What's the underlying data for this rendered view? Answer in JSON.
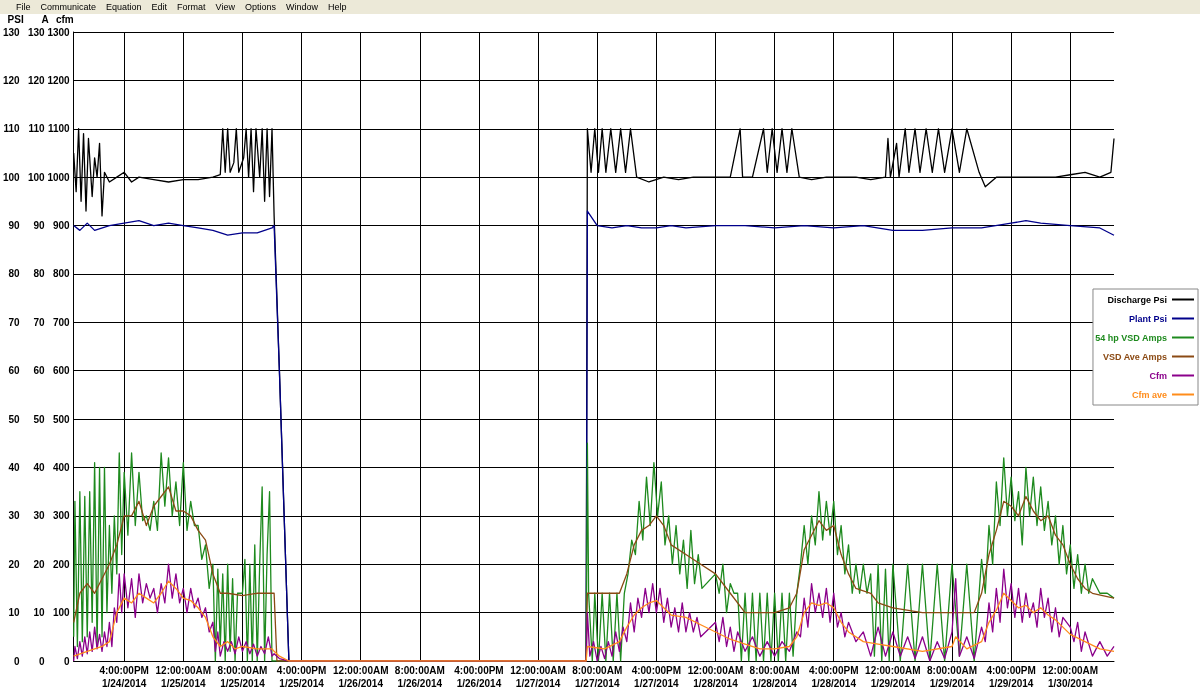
{
  "chart_data": {
    "type": "line",
    "annotations": [
      "File",
      "Communicate",
      "Equation",
      "Edit",
      "Format",
      "View",
      "Options",
      "Window",
      "Help"
    ],
    "ylabel": "PSI",
    "y2label": "A",
    "y3label": "cfm",
    "xlim": [
      "2014-01-24T09:10",
      "2014-01-30T05:55"
    ],
    "xticks": [
      {
        "value": "2014-01-24T16:00",
        "label": "4:00:00PM\n1/24/2014"
      },
      {
        "value": "2014-01-25T00:00",
        "label": "12:00:00AM\n1/25/2014"
      },
      {
        "value": "2014-01-25T08:00",
        "label": "8:00:00AM\n1/25/2014"
      },
      {
        "value": "2014-01-25T16:00",
        "label": "4:00:00PM\n1/25/2014"
      },
      {
        "value": "2014-01-26T00:00",
        "label": "12:00:00AM\n1/26/2014"
      },
      {
        "value": "2014-01-26T08:00",
        "label": "8:00:00AM\n1/26/2014"
      },
      {
        "value": "2014-01-26T16:00",
        "label": "4:00:00PM\n1/26/2014"
      },
      {
        "value": "2014-01-27T00:00",
        "label": "12:00:00AM\n1/27/2014"
      },
      {
        "value": "2014-01-27T08:00",
        "label": "8:00:00AM\n1/27/2014"
      },
      {
        "value": "2014-01-27T16:00",
        "label": "4:00:00PM\n1/27/2014"
      },
      {
        "value": "2014-01-28T00:00",
        "label": "12:00:00AM\n1/28/2014"
      },
      {
        "value": "2014-01-28T08:00",
        "label": "8:00:00AM\n1/28/2014"
      },
      {
        "value": "2014-01-28T16:00",
        "label": "4:00:00PM\n1/28/2014"
      },
      {
        "value": "2014-01-29T00:00",
        "label": "12:00:00AM\n1/29/2014"
      },
      {
        "value": "2014-01-29T08:00",
        "label": "8:00:00AM\n1/29/2014"
      },
      {
        "value": "2014-01-29T16:00",
        "label": "4:00:00PM\n1/29/2014"
      },
      {
        "value": "2014-01-30T00:00",
        "label": "12:00:00AM\n1/30/2014"
      }
    ],
    "ylim": [
      0,
      130
    ],
    "yticks": [
      0,
      10,
      20,
      30,
      40,
      50,
      60,
      70,
      80,
      90,
      100,
      110,
      120,
      130
    ],
    "y2lim": [
      0,
      130
    ],
    "y2ticks": [
      0,
      10,
      20,
      30,
      40,
      50,
      60,
      70,
      80,
      90,
      100,
      110,
      120,
      130
    ],
    "y3lim": [
      0,
      1300
    ],
    "y3ticks": [
      0,
      100,
      200,
      300,
      400,
      500,
      600,
      700,
      800,
      900,
      1000,
      1100,
      1200,
      1300
    ],
    "grid": true,
    "legend": "right",
    "marker": "none",
    "line_style": "solid",
    "series": [
      {
        "name": "Discharge Psi",
        "color": "#000000",
        "x": [
          "2014-01-24T09:10",
          "2014-01-24T09:30",
          "2014-01-24T09:50",
          "2014-01-24T10:10",
          "2014-01-24T10:30",
          "2014-01-24T10:50",
          "2014-01-24T11:10",
          "2014-01-24T11:40",
          "2014-01-24T12:00",
          "2014-01-24T12:20",
          "2014-01-24T12:40",
          "2014-01-24T13:00",
          "2014-01-24T13:20",
          "2014-01-24T14:00",
          "2014-01-24T15:00",
          "2014-01-24T16:00",
          "2014-01-24T17:00",
          "2014-01-24T18:00",
          "2014-01-24T20:00",
          "2014-01-24T22:00",
          "2014-01-25T00:00",
          "2014-01-25T02:00",
          "2014-01-25T04:00",
          "2014-01-25T05:00",
          "2014-01-25T05:20",
          "2014-01-25T05:40",
          "2014-01-25T06:00",
          "2014-01-25T06:20",
          "2014-01-25T06:50",
          "2014-01-25T07:10",
          "2014-01-25T07:30",
          "2014-01-25T08:10",
          "2014-01-25T08:30",
          "2014-01-25T08:50",
          "2014-01-25T09:10",
          "2014-01-25T09:30",
          "2014-01-25T09:50",
          "2014-01-25T10:20",
          "2014-01-25T10:40",
          "2014-01-25T11:00",
          "2014-01-25T11:20",
          "2014-01-25T11:40",
          "2014-01-25T12:00",
          "2014-01-25T12:17",
          "2014-01-25T13:00",
          "2014-01-25T14:17",
          "2014-01-27T06:30",
          "2014-01-27T06:40",
          "2014-01-27T07:10",
          "2014-01-27T07:40",
          "2014-01-27T08:10",
          "2014-01-27T08:40",
          "2014-01-27T09:10",
          "2014-01-27T09:50",
          "2014-01-27T10:30",
          "2014-01-27T11:10",
          "2014-01-27T11:50",
          "2014-01-27T12:30",
          "2014-01-27T13:20",
          "2014-01-27T15:00",
          "2014-01-27T17:00",
          "2014-01-27T19:00",
          "2014-01-27T21:00",
          "2014-01-28T00:00",
          "2014-01-28T02:00",
          "2014-01-28T03:20",
          "2014-01-28T03:40",
          "2014-01-28T05:00",
          "2014-01-28T06:30",
          "2014-01-28T07:00",
          "2014-01-28T07:40",
          "2014-01-28T08:20",
          "2014-01-28T09:00",
          "2014-01-28T09:40",
          "2014-01-28T10:20",
          "2014-01-28T11:20",
          "2014-01-28T13:00",
          "2014-01-28T15:00",
          "2014-01-28T17:00",
          "2014-01-28T19:00",
          "2014-01-28T21:00",
          "2014-01-28T23:00",
          "2014-01-28T23:20",
          "2014-01-28T23:40",
          "2014-01-29T00:30",
          "2014-01-29T00:50",
          "2014-01-29T01:40",
          "2014-01-29T02:10",
          "2014-01-29T03:00",
          "2014-01-29T03:40",
          "2014-01-29T04:30",
          "2014-01-29T05:20",
          "2014-01-29T06:10",
          "2014-01-29T07:00",
          "2014-01-29T08:00",
          "2014-01-29T09:00",
          "2014-01-29T10:00",
          "2014-01-29T11:40",
          "2014-01-29T12:30",
          "2014-01-29T14:00",
          "2014-01-29T16:00",
          "2014-01-29T18:00",
          "2014-01-29T20:00",
          "2014-01-29T22:00",
          "2014-01-30T00:00",
          "2014-01-30T02:00",
          "2014-01-30T04:00",
          "2014-01-30T05:30",
          "2014-01-30T05:55"
        ],
        "values": [
          105,
          97,
          110,
          95,
          109,
          93,
          108,
          96,
          104,
          100,
          107,
          92,
          101,
          99,
          100,
          101,
          99,
          100,
          99.5,
          99,
          99.5,
          99.5,
          100,
          100.5,
          110,
          101,
          110,
          101,
          103,
          110,
          101,
          104,
          110,
          100,
          110,
          97,
          110,
          100,
          110,
          95,
          110,
          96,
          110,
          92,
          60,
          0,
          0,
          110,
          101,
          110,
          101,
          110,
          101,
          110,
          101,
          110,
          101,
          110,
          100,
          99,
          100,
          99.5,
          100,
          100,
          100,
          110,
          100,
          100,
          110,
          101,
          110,
          101,
          110,
          101,
          110,
          100,
          99.5,
          100,
          100,
          100,
          99.5,
          100,
          108,
          100,
          107,
          100,
          110,
          101,
          110,
          101,
          110,
          101,
          110,
          101,
          110,
          101,
          110,
          101,
          98,
          100,
          100,
          100,
          100,
          100,
          100.5,
          101,
          100,
          101,
          108
        ]
      },
      {
        "name": "Plant Psi",
        "color": "#00008b",
        "x": [
          "2014-01-24T09:10",
          "2014-01-24T10:00",
          "2014-01-24T11:00",
          "2014-01-24T12:00",
          "2014-01-24T14:00",
          "2014-01-24T16:00",
          "2014-01-24T18:00",
          "2014-01-24T20:00",
          "2014-01-24T22:00",
          "2014-01-25T00:00",
          "2014-01-25T02:00",
          "2014-01-25T04:00",
          "2014-01-25T06:00",
          "2014-01-25T08:00",
          "2014-01-25T10:00",
          "2014-01-25T12:00",
          "2014-01-25T12:17",
          "2014-01-25T13:00",
          "2014-01-25T14:17",
          "2014-01-27T06:30",
          "2014-01-27T06:40",
          "2014-01-27T08:00",
          "2014-01-27T10:00",
          "2014-01-27T12:00",
          "2014-01-27T14:00",
          "2014-01-27T16:00",
          "2014-01-27T18:00",
          "2014-01-27T20:00",
          "2014-01-28T00:00",
          "2014-01-28T04:00",
          "2014-01-28T08:00",
          "2014-01-28T12:00",
          "2014-01-28T16:00",
          "2014-01-28T20:00",
          "2014-01-29T00:00",
          "2014-01-29T04:00",
          "2014-01-29T08:00",
          "2014-01-29T12:00",
          "2014-01-29T16:00",
          "2014-01-29T18:00",
          "2014-01-29T20:00",
          "2014-01-30T00:00",
          "2014-01-30T04:00",
          "2014-01-30T05:55"
        ],
        "values": [
          90,
          89,
          90.5,
          89,
          90,
          90.5,
          91,
          90,
          90.5,
          90,
          89.5,
          89,
          88,
          88.5,
          88.5,
          89.5,
          90,
          60,
          0,
          0,
          93,
          90,
          89.5,
          90,
          89.5,
          89.5,
          90,
          89.5,
          90,
          90,
          89.5,
          90,
          89.5,
          90,
          89,
          89,
          89.5,
          89.5,
          90.5,
          91,
          90.5,
          90,
          89.5,
          88
        ]
      },
      {
        "name": "54 hp VSD Amps",
        "color": "#1e8a1e",
        "axis": "y2",
        "x": [
          "2014-01-24T09:10",
          "2014-01-24T09:20",
          "2014-01-24T09:40",
          "2014-01-24T10:00",
          "2014-01-24T10:20",
          "2014-01-24T10:40",
          "2014-01-24T11:00",
          "2014-01-24T11:20",
          "2014-01-24T11:40",
          "2014-01-24T12:00",
          "2014-01-24T12:20",
          "2014-01-24T12:40",
          "2014-01-24T13:00",
          "2014-01-24T13:20",
          "2014-01-24T13:40",
          "2014-01-24T14:00",
          "2014-01-24T14:20",
          "2014-01-24T14:40",
          "2014-01-24T15:00",
          "2014-01-24T15:20",
          "2014-01-24T15:40",
          "2014-01-24T16:00",
          "2014-01-24T16:30",
          "2014-01-24T17:00",
          "2014-01-24T17:30",
          "2014-01-24T18:00",
          "2014-01-24T18:30",
          "2014-01-24T19:00",
          "2014-01-24T19:30",
          "2014-01-24T20:00",
          "2014-01-24T20:30",
          "2014-01-24T21:00",
          "2014-01-24T21:30",
          "2014-01-24T22:00",
          "2014-01-24T22:30",
          "2014-01-24T23:00",
          "2014-01-24T23:30",
          "2014-01-25T00:00",
          "2014-01-25T00:30",
          "2014-01-25T01:00",
          "2014-01-25T01:30",
          "2014-01-25T02:00",
          "2014-01-25T02:30",
          "2014-01-25T03:00",
          "2014-01-25T03:30",
          "2014-01-25T04:00",
          "2014-01-25T04:20",
          "2014-01-25T04:40",
          "2014-01-25T05:00",
          "2014-01-25T05:20",
          "2014-01-25T05:40",
          "2014-01-25T06:00",
          "2014-01-25T06:20",
          "2014-01-25T06:40",
          "2014-01-25T07:00",
          "2014-01-25T07:20",
          "2014-01-25T07:40",
          "2014-01-25T08:00",
          "2014-01-25T08:20",
          "2014-01-25T08:40",
          "2014-01-25T09:00",
          "2014-01-25T09:20",
          "2014-01-25T09:40",
          "2014-01-25T10:00",
          "2014-01-25T10:20",
          "2014-01-25T10:40",
          "2014-01-25T11:00",
          "2014-01-25T11:20",
          "2014-01-25T11:40",
          "2014-01-25T12:00",
          "2014-01-25T12:17",
          "2014-01-27T06:30",
          "2014-01-27T06:40",
          "2014-01-27T06:50",
          "2014-01-27T07:20",
          "2014-01-27T07:40",
          "2014-01-27T08:10",
          "2014-01-27T08:40",
          "2014-01-27T09:10",
          "2014-01-27T09:40",
          "2014-01-27T10:10",
          "2014-01-27T10:40",
          "2014-01-27T11:10",
          "2014-01-27T11:40",
          "2014-01-27T12:10",
          "2014-01-27T12:40",
          "2014-01-27T13:10",
          "2014-01-27T13:40",
          "2014-01-27T14:10",
          "2014-01-27T14:40",
          "2014-01-27T15:10",
          "2014-01-27T15:40",
          "2014-01-27T16:10",
          "2014-01-27T16:40",
          "2014-01-27T17:10",
          "2014-01-27T17:40",
          "2014-01-27T18:10",
          "2014-01-27T18:40",
          "2014-01-27T19:10",
          "2014-01-27T19:40",
          "2014-01-27T20:10",
          "2014-01-27T20:40",
          "2014-01-27T21:10",
          "2014-01-27T21:40",
          "2014-01-27T22:10",
          "2014-01-28T00:00",
          "2014-01-28T00:30",
          "2014-01-28T01:00",
          "2014-01-28T01:30",
          "2014-01-28T02:00",
          "2014-01-28T02:30",
          "2014-01-28T03:00",
          "2014-01-28T03:30",
          "2014-01-28T04:00",
          "2014-01-28T04:30",
          "2014-01-28T05:00",
          "2014-01-28T05:30",
          "2014-01-28T06:00",
          "2014-01-28T06:30",
          "2014-01-28T07:00",
          "2014-01-28T07:30",
          "2014-01-28T08:00",
          "2014-01-28T08:30",
          "2014-01-28T09:00",
          "2014-01-28T09:30",
          "2014-01-28T10:00",
          "2014-01-28T10:30",
          "2014-01-28T11:00",
          "2014-01-28T11:30",
          "2014-01-28T12:00",
          "2014-01-28T12:30",
          "2014-01-28T13:00",
          "2014-01-28T13:30",
          "2014-01-28T14:00",
          "2014-01-28T14:30",
          "2014-01-28T15:00",
          "2014-01-28T15:30",
          "2014-01-28T16:00",
          "2014-01-28T16:30",
          "2014-01-28T17:00",
          "2014-01-28T17:30",
          "2014-01-28T18:00",
          "2014-01-28T18:30",
          "2014-01-28T19:00",
          "2014-01-28T19:30",
          "2014-01-28T20:00",
          "2014-01-28T20:30",
          "2014-01-28T21:00",
          "2014-01-28T21:30",
          "2014-01-28T22:00",
          "2014-01-28T22:30",
          "2014-01-28T23:00",
          "2014-01-28T23:30",
          "2014-01-29T00:00",
          "2014-01-29T01:00",
          "2014-01-29T02:00",
          "2014-01-29T03:00",
          "2014-01-29T04:00",
          "2014-01-29T05:00",
          "2014-01-29T06:00",
          "2014-01-29T07:00",
          "2014-01-29T08:00",
          "2014-01-29T09:00",
          "2014-01-29T10:00",
          "2014-01-29T11:00",
          "2014-01-29T12:00",
          "2014-01-29T12:30",
          "2014-01-29T13:00",
          "2014-01-29T13:30",
          "2014-01-29T14:00",
          "2014-01-29T14:30",
          "2014-01-29T15:00",
          "2014-01-29T15:30",
          "2014-01-29T16:00",
          "2014-01-29T16:30",
          "2014-01-29T17:00",
          "2014-01-29T17:30",
          "2014-01-29T18:00",
          "2014-01-29T18:30",
          "2014-01-29T19:00",
          "2014-01-29T19:30",
          "2014-01-29T20:00",
          "2014-01-29T20:30",
          "2014-01-29T21:00",
          "2014-01-29T21:30",
          "2014-01-29T22:00",
          "2014-01-29T22:30",
          "2014-01-29T23:00",
          "2014-01-29T23:30",
          "2014-01-30T00:00",
          "2014-01-30T00:30",
          "2014-01-30T01:00",
          "2014-01-30T01:30",
          "2014-01-30T02:00",
          "2014-01-30T02:30",
          "2014-01-30T03:00",
          "2014-01-30T04:00",
          "2014-01-30T05:00",
          "2014-01-30T05:55"
        ],
        "values": [
          5,
          33,
          3,
          35,
          4,
          34,
          5,
          35,
          8,
          41,
          3,
          40,
          5,
          40,
          10,
          28,
          14,
          30,
          18,
          43,
          22,
          39,
          26,
          43,
          28,
          39,
          29,
          30,
          27,
          33,
          27,
          43,
          32,
          42,
          30,
          37,
          28,
          41,
          27,
          33,
          28,
          28,
          21,
          24,
          15,
          20,
          0,
          19,
          3,
          18,
          0,
          20,
          2,
          17,
          0,
          14,
          14,
          14,
          21,
          0,
          20,
          0,
          24,
          0,
          20,
          36,
          0,
          22,
          35,
          0,
          0,
          0,
          45,
          14,
          0,
          14,
          0,
          14,
          0,
          14,
          0,
          14,
          0,
          14,
          18,
          25,
          22,
          33,
          25,
          38,
          28,
          41,
          30,
          37,
          24,
          30,
          20,
          28,
          18,
          25,
          15,
          27,
          16,
          22,
          15,
          18,
          14,
          20,
          10,
          16,
          14,
          14,
          0,
          14,
          0,
          14,
          0,
          14,
          0,
          14,
          0,
          14,
          0,
          14,
          0,
          14,
          1,
          14,
          20,
          28,
          20,
          30,
          24,
          35,
          25,
          33,
          26,
          33,
          22,
          28,
          18,
          24,
          14,
          20,
          14,
          20,
          14,
          18,
          1,
          20,
          0,
          19,
          0,
          20,
          0,
          20,
          0,
          20,
          0,
          20,
          0,
          20,
          1,
          20,
          0,
          21,
          14,
          28,
          20,
          37,
          28,
          42,
          30,
          38,
          29,
          35,
          24,
          40,
          30,
          38,
          28,
          36,
          27,
          33,
          24,
          30,
          20,
          28,
          18,
          24,
          15,
          22,
          14,
          20,
          14,
          17,
          14,
          14,
          13
        ]
      },
      {
        "name": "VSD Ave Amps",
        "color": "#8b4a14",
        "axis": "y2",
        "x": [
          "2014-01-24T09:10",
          "2014-01-24T10:00",
          "2014-01-24T11:00",
          "2014-01-24T12:00",
          "2014-01-24T13:00",
          "2014-01-24T14:00",
          "2014-01-24T15:00",
          "2014-01-24T16:00",
          "2014-01-24T17:00",
          "2014-01-24T18:00",
          "2014-01-24T19:00",
          "2014-01-24T20:00",
          "2014-01-24T21:00",
          "2014-01-24T22:00",
          "2014-01-24T23:00",
          "2014-01-25T00:00",
          "2014-01-25T01:00",
          "2014-01-25T02:00",
          "2014-01-25T03:00",
          "2014-01-25T04:00",
          "2014-01-25T05:00",
          "2014-01-25T06:00",
          "2014-01-25T08:00",
          "2014-01-25T10:00",
          "2014-01-25T12:00",
          "2014-01-25T12:17",
          "2014-01-25T12:40",
          "2014-01-27T06:30",
          "2014-01-27T06:40",
          "2014-01-27T09:00",
          "2014-01-27T11:00",
          "2014-01-27T12:00",
          "2014-01-27T13:00",
          "2014-01-27T14:00",
          "2014-01-27T15:00",
          "2014-01-27T16:00",
          "2014-01-27T17:00",
          "2014-01-27T18:00",
          "2014-01-27T20:00",
          "2014-01-27T22:00",
          "2014-01-28T00:00",
          "2014-01-28T02:00",
          "2014-01-28T04:00",
          "2014-01-28T06:00",
          "2014-01-28T08:00",
          "2014-01-28T10:00",
          "2014-01-28T11:00",
          "2014-01-28T12:00",
          "2014-01-28T13:00",
          "2014-01-28T14:00",
          "2014-01-28T15:00",
          "2014-01-28T16:00",
          "2014-01-28T17:00",
          "2014-01-28T18:00",
          "2014-01-28T19:00",
          "2014-01-28T21:00",
          "2014-01-28T22:00",
          "2014-01-29T00:00",
          "2014-01-29T04:00",
          "2014-01-29T08:00",
          "2014-01-29T11:00",
          "2014-01-29T12:00",
          "2014-01-29T13:00",
          "2014-01-29T14:00",
          "2014-01-29T15:00",
          "2014-01-29T16:00",
          "2014-01-29T17:00",
          "2014-01-29T18:00",
          "2014-01-29T19:00",
          "2014-01-29T20:00",
          "2014-01-29T21:00",
          "2014-01-29T22:00",
          "2014-01-29T23:00",
          "2014-01-30T00:00",
          "2014-01-30T01:00",
          "2014-01-30T02:00",
          "2014-01-30T03:00",
          "2014-01-30T05:55"
        ],
        "values": [
          8,
          14,
          16,
          14,
          17,
          20,
          24,
          30,
          30,
          33,
          28,
          32,
          34,
          36,
          31,
          31,
          30,
          27,
          25,
          18,
          14,
          14,
          13.5,
          14,
          14,
          14,
          0,
          0,
          14,
          14,
          14,
          18,
          24,
          27,
          28,
          30,
          28,
          24,
          22,
          20,
          18,
          14,
          10,
          10,
          10,
          11,
          14,
          23,
          26,
          29,
          27,
          28,
          22,
          18,
          15,
          14,
          12,
          11,
          10,
          10,
          10,
          14,
          22,
          27,
          33,
          32,
          30,
          34,
          31,
          29,
          30,
          26,
          24,
          20,
          17,
          15,
          14,
          13
        ]
      },
      {
        "name": "Cfm",
        "color": "#8b008b",
        "axis": "y3",
        "x": [
          "2014-01-24T09:10",
          "2014-01-24T09:20",
          "2014-01-24T09:40",
          "2014-01-24T10:00",
          "2014-01-24T10:20",
          "2014-01-24T10:40",
          "2014-01-24T11:00",
          "2014-01-24T11:20",
          "2014-01-24T11:40",
          "2014-01-24T12:00",
          "2014-01-24T12:20",
          "2014-01-24T12:40",
          "2014-01-24T13:00",
          "2014-01-24T13:20",
          "2014-01-24T13:40",
          "2014-01-24T14:00",
          "2014-01-24T14:20",
          "2014-01-24T14:40",
          "2014-01-24T15:00",
          "2014-01-24T15:20",
          "2014-01-24T15:40",
          "2014-01-24T16:00",
          "2014-01-24T16:30",
          "2014-01-24T17:00",
          "2014-01-24T17:30",
          "2014-01-24T18:00",
          "2014-01-24T18:30",
          "2014-01-24T19:00",
          "2014-01-24T19:30",
          "2014-01-24T20:00",
          "2014-01-24T20:30",
          "2014-01-24T21:00",
          "2014-01-24T21:30",
          "2014-01-24T22:00",
          "2014-01-24T22:30",
          "2014-01-24T23:00",
          "2014-01-24T23:30",
          "2014-01-25T00:00",
          "2014-01-25T00:30",
          "2014-01-25T01:00",
          "2014-01-25T01:30",
          "2014-01-25T02:00",
          "2014-01-25T02:30",
          "2014-01-25T03:00",
          "2014-01-25T03:30",
          "2014-01-25T04:00",
          "2014-01-25T04:20",
          "2014-01-25T04:40",
          "2014-01-25T05:00",
          "2014-01-25T05:30",
          "2014-01-25T06:00",
          "2014-01-25T06:30",
          "2014-01-25T07:00",
          "2014-01-25T07:30",
          "2014-01-25T08:00",
          "2014-01-25T08:30",
          "2014-01-25T09:00",
          "2014-01-25T09:30",
          "2014-01-25T10:00",
          "2014-01-25T10:30",
          "2014-01-25T11:00",
          "2014-01-25T11:30",
          "2014-01-25T12:00",
          "2014-01-25T12:17",
          "2014-01-25T13:00",
          "2014-01-25T14:17",
          "2014-01-27T06:30",
          "2014-01-27T06:40",
          "2014-01-27T07:00",
          "2014-01-27T07:30",
          "2014-01-27T08:00",
          "2014-01-27T08:30",
          "2014-01-27T09:00",
          "2014-01-27T09:30",
          "2014-01-27T10:00",
          "2014-01-27T10:30",
          "2014-01-27T11:00",
          "2014-01-27T11:30",
          "2014-01-27T12:00",
          "2014-01-27T12:30",
          "2014-01-27T13:00",
          "2014-01-27T13:30",
          "2014-01-27T14:00",
          "2014-01-27T14:30",
          "2014-01-27T15:00",
          "2014-01-27T15:30",
          "2014-01-27T16:00",
          "2014-01-27T16:30",
          "2014-01-27T17:00",
          "2014-01-27T17:30",
          "2014-01-27T18:00",
          "2014-01-27T18:30",
          "2014-01-27T19:00",
          "2014-01-27T19:30",
          "2014-01-27T20:00",
          "2014-01-27T20:30",
          "2014-01-27T21:00",
          "2014-01-27T21:30",
          "2014-01-27T22:00",
          "2014-01-28T00:00",
          "2014-01-28T00:30",
          "2014-01-28T01:00",
          "2014-01-28T01:30",
          "2014-01-28T02:00",
          "2014-01-28T02:30",
          "2014-01-28T03:00",
          "2014-01-28T04:00",
          "2014-01-28T05:00",
          "2014-01-28T06:00",
          "2014-01-28T07:00",
          "2014-01-28T08:00",
          "2014-01-28T09:00",
          "2014-01-28T10:00",
          "2014-01-28T11:00",
          "2014-01-28T11:30",
          "2014-01-28T12:00",
          "2014-01-28T12:30",
          "2014-01-28T13:00",
          "2014-01-28T13:30",
          "2014-01-28T14:00",
          "2014-01-28T14:30",
          "2014-01-28T15:00",
          "2014-01-28T15:30",
          "2014-01-28T16:00",
          "2014-01-28T16:30",
          "2014-01-28T17:00",
          "2014-01-28T17:30",
          "2014-01-28T18:00",
          "2014-01-28T19:00",
          "2014-01-28T20:00",
          "2014-01-28T21:00",
          "2014-01-28T22:00",
          "2014-01-28T23:00",
          "2014-01-29T00:00",
          "2014-01-29T01:00",
          "2014-01-29T02:00",
          "2014-01-29T03:00",
          "2014-01-29T04:00",
          "2014-01-29T05:00",
          "2014-01-29T06:00",
          "2014-01-29T07:00",
          "2014-01-29T08:00",
          "2014-01-29T08:30",
          "2014-01-29T09:00",
          "2014-01-29T10:00",
          "2014-01-29T11:00",
          "2014-01-29T12:00",
          "2014-01-29T12:30",
          "2014-01-29T13:00",
          "2014-01-29T13:30",
          "2014-01-29T14:00",
          "2014-01-29T14:30",
          "2014-01-29T15:00",
          "2014-01-29T15:30",
          "2014-01-29T16:00",
          "2014-01-29T16:30",
          "2014-01-29T17:00",
          "2014-01-29T17:30",
          "2014-01-29T18:00",
          "2014-01-29T18:30",
          "2014-01-29T19:00",
          "2014-01-29T19:30",
          "2014-01-29T20:00",
          "2014-01-29T20:30",
          "2014-01-29T21:00",
          "2014-01-29T21:30",
          "2014-01-29T22:00",
          "2014-01-29T22:30",
          "2014-01-29T23:00",
          "2014-01-30T00:00",
          "2014-01-30T00:30",
          "2014-01-30T01:00",
          "2014-01-30T01:30",
          "2014-01-30T02:00",
          "2014-01-30T03:00",
          "2014-01-30T04:00",
          "2014-01-30T05:00",
          "2014-01-30T05:55"
        ],
        "values": [
          0,
          30,
          5,
          40,
          10,
          50,
          15,
          60,
          20,
          70,
          25,
          55,
          20,
          60,
          30,
          80,
          30,
          110,
          80,
          180,
          100,
          180,
          110,
          170,
          90,
          180,
          120,
          160,
          130,
          150,
          100,
          160,
          120,
          200,
          130,
          180,
          120,
          150,
          100,
          150,
          110,
          130,
          90,
          110,
          60,
          80,
          20,
          60,
          10,
          40,
          20,
          40,
          15,
          50,
          20,
          40,
          15,
          35,
          10,
          30,
          15,
          50,
          10,
          15,
          5,
          0,
          0,
          100,
          10,
          40,
          0,
          30,
          5,
          40,
          10,
          60,
          20,
          70,
          40,
          120,
          60,
          130,
          90,
          150,
          100,
          160,
          100,
          150,
          80,
          130,
          70,
          110,
          60,
          120,
          60,
          100,
          60,
          90,
          50,
          80,
          40,
          90,
          30,
          70,
          20,
          60,
          20,
          50,
          10,
          40,
          10,
          40,
          20,
          60,
          50,
          130,
          70,
          160,
          100,
          140,
          90,
          150,
          80,
          140,
          70,
          100,
          50,
          80,
          40,
          60,
          10,
          70,
          10,
          60,
          10,
          50,
          5,
          50,
          0,
          40,
          5,
          60,
          170,
          10,
          50,
          5,
          70,
          40,
          120,
          60,
          150,
          80,
          190,
          110,
          160,
          90,
          150,
          80,
          140,
          90,
          120,
          70,
          150,
          90,
          130,
          60,
          110,
          50,
          90,
          70,
          40,
          80,
          20,
          60,
          10,
          40,
          10,
          30
        ]
      },
      {
        "name": "Cfm ave",
        "color": "#ff8c1a",
        "axis": "y3",
        "x": [
          "2014-01-24T09:10",
          "2014-01-24T11:00",
          "2014-01-24T13:00",
          "2014-01-24T14:00",
          "2014-01-24T15:00",
          "2014-01-24T16:00",
          "2014-01-24T17:00",
          "2014-01-24T18:00",
          "2014-01-24T19:00",
          "2014-01-24T20:00",
          "2014-01-24T21:00",
          "2014-01-24T22:00",
          "2014-01-24T23:00",
          "2014-01-25T00:00",
          "2014-01-25T01:00",
          "2014-01-25T02:00",
          "2014-01-25T03:00",
          "2014-01-25T04:00",
          "2014-01-25T05:00",
          "2014-01-25T06:00",
          "2014-01-25T07:00",
          "2014-01-25T08:00",
          "2014-01-25T10:00",
          "2014-01-25T12:00",
          "2014-01-25T12:17",
          "2014-01-25T13:00",
          "2014-01-25T14:17",
          "2014-01-27T06:30",
          "2014-01-27T06:40",
          "2014-01-27T09:00",
          "2014-01-27T11:00",
          "2014-01-27T12:00",
          "2014-01-27T13:00",
          "2014-01-27T14:00",
          "2014-01-27T15:00",
          "2014-01-27T16:00",
          "2014-01-27T17:00",
          "2014-01-27T18:00",
          "2014-01-27T20:00",
          "2014-01-27T22:00",
          "2014-01-28T00:00",
          "2014-01-28T02:00",
          "2014-01-28T04:00",
          "2014-01-28T06:00",
          "2014-01-28T08:00",
          "2014-01-28T10:00",
          "2014-01-28T11:00",
          "2014-01-28T12:00",
          "2014-01-28T13:00",
          "2014-01-28T14:00",
          "2014-01-28T15:00",
          "2014-01-28T16:00",
          "2014-01-28T17:00",
          "2014-01-28T18:00",
          "2014-01-28T20:00",
          "2014-01-28T22:00",
          "2014-01-29T00:00",
          "2014-01-29T04:00",
          "2014-01-29T08:00",
          "2014-01-29T08:30",
          "2014-01-29T10:00",
          "2014-01-29T12:00",
          "2014-01-29T13:00",
          "2014-01-29T14:00",
          "2014-01-29T15:00",
          "2014-01-29T16:00",
          "2014-01-29T17:00",
          "2014-01-29T18:00",
          "2014-01-29T19:00",
          "2014-01-29T20:00",
          "2014-01-29T21:00",
          "2014-01-29T22:00",
          "2014-01-29T23:00",
          "2014-01-30T00:00",
          "2014-01-30T02:00",
          "2014-01-30T04:00",
          "2014-01-30T05:55"
        ],
        "values": [
          10,
          20,
          30,
          40,
          100,
          130,
          120,
          140,
          130,
          120,
          140,
          165,
          150,
          130,
          125,
          110,
          90,
          50,
          30,
          40,
          25,
          30,
          25,
          25,
          20,
          10,
          0,
          0,
          30,
          25,
          40,
          70,
          95,
          110,
          120,
          125,
          110,
          95,
          90,
          75,
          60,
          45,
          35,
          25,
          25,
          30,
          50,
          100,
          120,
          115,
          120,
          110,
          80,
          60,
          40,
          35,
          30,
          20,
          30,
          50,
          25,
          40,
          80,
          105,
          140,
          125,
          110,
          115,
          100,
          110,
          95,
          85,
          70,
          55,
          40,
          25,
          20
        ]
      }
    ]
  }
}
